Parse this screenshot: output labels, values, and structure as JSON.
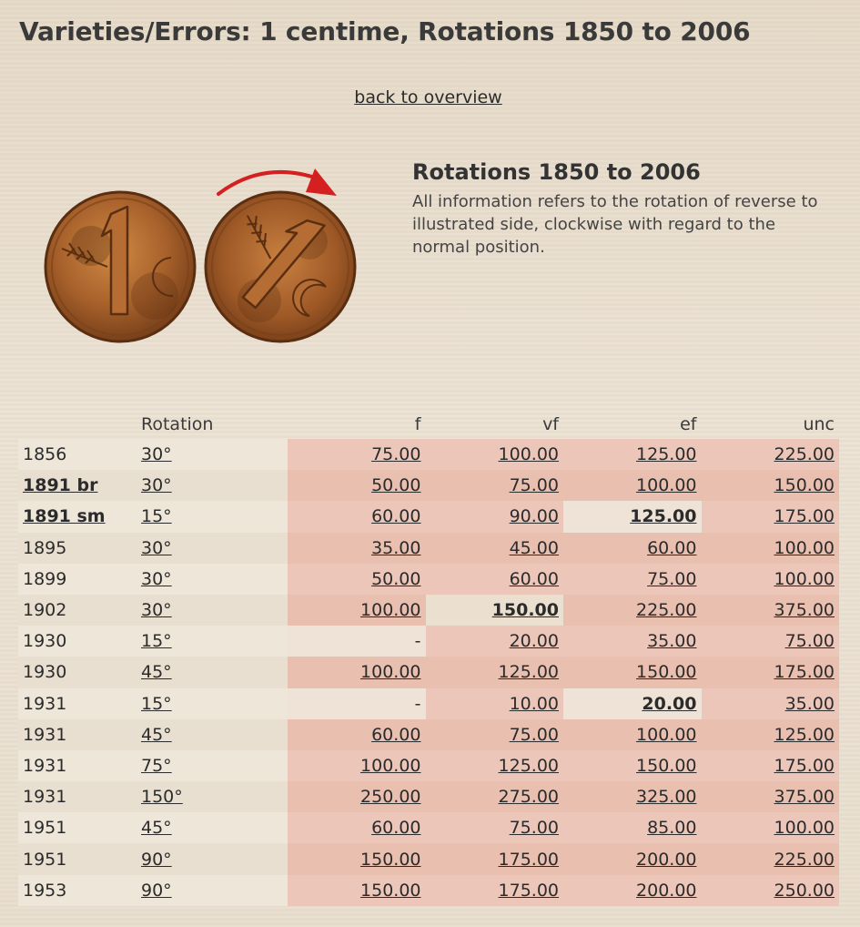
{
  "page": {
    "title": "Varieties/Errors: 1 centime, Rotations 1850 to 2006",
    "back_link": "back to overview"
  },
  "info": {
    "title": "Rotations 1850 to 2006",
    "text": "All information refers to the rotation of reverse to illustrated side, clockwise with regard to the normal position."
  },
  "coins": {
    "obverse_icon": "coin-1-centime-normal-icon",
    "rotated_icon": "coin-1-centime-rotated-icon",
    "arrow_icon": "clockwise-arrow-icon",
    "arrow_color": "#d42020",
    "coin_color": "#b06a30"
  },
  "table": {
    "headers": {
      "year": "",
      "rotation": "Rotation",
      "f": "f",
      "vf": "vf",
      "ef": "ef",
      "unc": "unc"
    },
    "rows": [
      {
        "year": "1856",
        "rotation": "30°",
        "f": "75.00",
        "vf": "100.00",
        "ef": "125.00",
        "unc": "225.00"
      },
      {
        "year": "1891 br",
        "rotation": "30°",
        "f": "50.00",
        "vf": "75.00",
        "ef": "100.00",
        "unc": "150.00"
      },
      {
        "year": "1891 sm",
        "rotation": "15°",
        "f": "60.00",
        "vf": "90.00",
        "ef": "125.00",
        "unc": "175.00"
      },
      {
        "year": "1895",
        "rotation": "30°",
        "f": "35.00",
        "vf": "45.00",
        "ef": "60.00",
        "unc": "100.00"
      },
      {
        "year": "1899",
        "rotation": "30°",
        "f": "50.00",
        "vf": "60.00",
        "ef": "75.00",
        "unc": "100.00"
      },
      {
        "year": "1902",
        "rotation": "30°",
        "f": "100.00",
        "vf": "150.00",
        "ef": "225.00",
        "unc": "375.00"
      },
      {
        "year": "1930",
        "rotation": "15°",
        "f": "-",
        "vf": "20.00",
        "ef": "35.00",
        "unc": "75.00"
      },
      {
        "year": "1930",
        "rotation": "45°",
        "f": "100.00",
        "vf": "125.00",
        "ef": "150.00",
        "unc": "175.00"
      },
      {
        "year": "1931",
        "rotation": "15°",
        "f": "-",
        "vf": "10.00",
        "ef": "20.00",
        "unc": "35.00"
      },
      {
        "year": "1931",
        "rotation": "45°",
        "f": "60.00",
        "vf": "75.00",
        "ef": "100.00",
        "unc": "125.00"
      },
      {
        "year": "1931",
        "rotation": "75°",
        "f": "100.00",
        "vf": "125.00",
        "ef": "150.00",
        "unc": "175.00"
      },
      {
        "year": "1931",
        "rotation": "150°",
        "f": "250.00",
        "vf": "275.00",
        "ef": "325.00",
        "unc": "375.00"
      },
      {
        "year": "1951",
        "rotation": "45°",
        "f": "60.00",
        "vf": "75.00",
        "ef": "85.00",
        "unc": "100.00"
      },
      {
        "year": "1951",
        "rotation": "90°",
        "f": "150.00",
        "vf": "175.00",
        "ef": "200.00",
        "unc": "225.00"
      },
      {
        "year": "1953",
        "rotation": "90°",
        "f": "150.00",
        "vf": "175.00",
        "ef": "200.00",
        "unc": "250.00"
      }
    ]
  }
}
